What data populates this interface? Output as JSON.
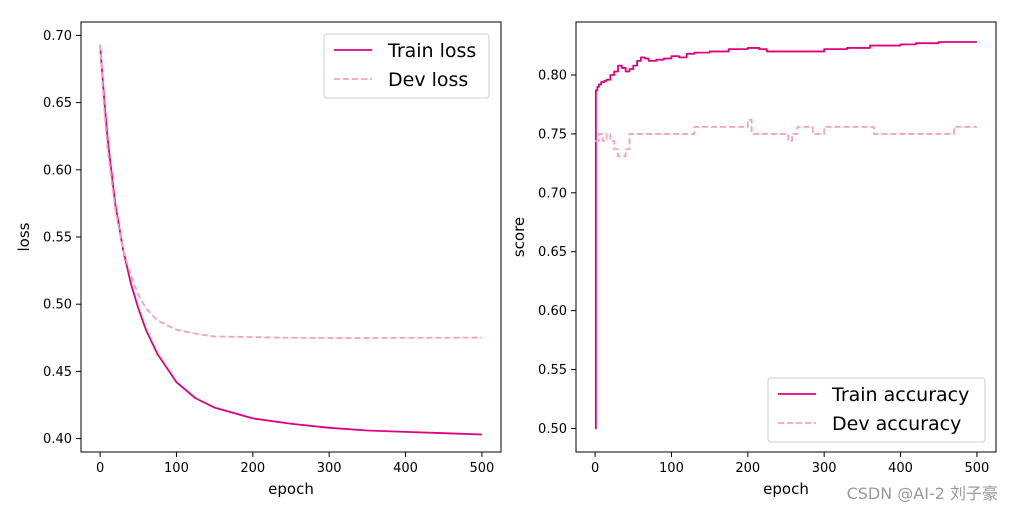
{
  "colors": {
    "train": "#e0007f",
    "dev": "#f2a2bd",
    "axis": "#000000",
    "legend_border": "#cccccc",
    "frame": "#e0e0e0"
  },
  "watermark": "CSDN @AI-2  刘子豪",
  "chart_data": [
    {
      "type": "line",
      "xlabel": "epoch",
      "ylabel": "loss",
      "xlim": [
        -25,
        525
      ],
      "ylim": [
        0.39,
        0.71
      ],
      "xticks": [
        0,
        100,
        200,
        300,
        400,
        500
      ],
      "xtick_labels": [
        "0",
        "100",
        "200",
        "300",
        "400",
        "500"
      ],
      "yticks": [
        0.4,
        0.45,
        0.5,
        0.55,
        0.6,
        0.65,
        0.7
      ],
      "ytick_labels": [
        "0.40",
        "0.45",
        "0.50",
        "0.55",
        "0.60",
        "0.65",
        "0.70"
      ],
      "legend_position": "upper-right",
      "series": [
        {
          "name": "Train loss",
          "style": "solid",
          "x": [
            0,
            5,
            10,
            20,
            30,
            40,
            50,
            60,
            75,
            100,
            125,
            150,
            200,
            250,
            300,
            350,
            400,
            450,
            500
          ],
          "values": [
            0.693,
            0.655,
            0.622,
            0.574,
            0.541,
            0.516,
            0.497,
            0.481,
            0.463,
            0.442,
            0.43,
            0.423,
            0.415,
            0.411,
            0.408,
            0.406,
            0.405,
            0.404,
            0.403
          ]
        },
        {
          "name": "Dev loss",
          "style": "dashed",
          "x": [
            0,
            5,
            10,
            20,
            30,
            40,
            50,
            60,
            75,
            100,
            125,
            150,
            200,
            250,
            300,
            350,
            400,
            450,
            500
          ],
          "values": [
            0.693,
            0.648,
            0.614,
            0.57,
            0.541,
            0.522,
            0.507,
            0.497,
            0.488,
            0.481,
            0.478,
            0.476,
            0.4755,
            0.475,
            0.4748,
            0.4748,
            0.475,
            0.475,
            0.4752
          ]
        }
      ]
    },
    {
      "type": "line",
      "xlabel": "epoch",
      "ylabel": "score",
      "xlim": [
        -25,
        525
      ],
      "ylim": [
        0.48,
        0.845
      ],
      "xticks": [
        0,
        100,
        200,
        300,
        400,
        500
      ],
      "xtick_labels": [
        "0",
        "100",
        "200",
        "300",
        "400",
        "500"
      ],
      "yticks": [
        0.5,
        0.55,
        0.6,
        0.65,
        0.7,
        0.75,
        0.8
      ],
      "ytick_labels": [
        "0.50",
        "0.55",
        "0.60",
        "0.65",
        "0.70",
        "0.75",
        "0.80"
      ],
      "legend_position": "lower-right",
      "series": [
        {
          "name": "Train accuracy",
          "style": "solid",
          "x": [
            0,
            1,
            3,
            5,
            8,
            12,
            15,
            20,
            25,
            30,
            35,
            40,
            45,
            50,
            55,
            60,
            65,
            70,
            80,
            90,
            100,
            110,
            120,
            130,
            150,
            175,
            200,
            215,
            225,
            250,
            280,
            300,
            330,
            360,
            400,
            420,
            450,
            500
          ],
          "values": [
            0.5,
            0.787,
            0.79,
            0.792,
            0.794,
            0.795,
            0.796,
            0.8,
            0.803,
            0.808,
            0.806,
            0.803,
            0.805,
            0.808,
            0.812,
            0.815,
            0.814,
            0.812,
            0.813,
            0.814,
            0.816,
            0.815,
            0.818,
            0.819,
            0.82,
            0.822,
            0.823,
            0.822,
            0.82,
            0.82,
            0.82,
            0.822,
            0.823,
            0.825,
            0.826,
            0.827,
            0.828,
            0.828
          ]
        },
        {
          "name": "Dev accuracy",
          "style": "dashed",
          "x": [
            0,
            5,
            10,
            15,
            20,
            25,
            30,
            40,
            45,
            50,
            130,
            180,
            200,
            205,
            250,
            253,
            258,
            265,
            285,
            300,
            365,
            400,
            470,
            500
          ],
          "values": [
            0.744,
            0.75,
            0.744,
            0.75,
            0.744,
            0.737,
            0.731,
            0.737,
            0.75,
            0.75,
            0.756,
            0.756,
            0.762,
            0.75,
            0.75,
            0.744,
            0.75,
            0.756,
            0.75,
            0.756,
            0.75,
            0.75,
            0.756,
            0.756
          ]
        }
      ]
    }
  ]
}
